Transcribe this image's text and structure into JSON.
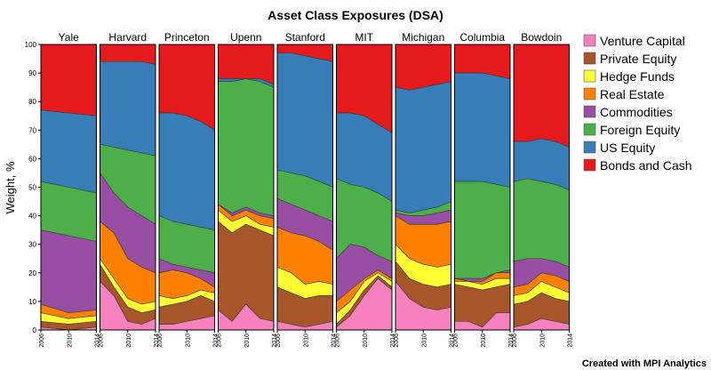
{
  "chart_data": {
    "type": "area",
    "title": "Asset Class Exposures (DSA)",
    "ylabel": "Weight, %",
    "ylim": [
      0,
      100
    ],
    "yticks": [
      0,
      10,
      20,
      30,
      40,
      50,
      60,
      70,
      80,
      90,
      100
    ],
    "stacked": true,
    "legend_position": "right",
    "credit": "Created with MPI Analytics",
    "x_tick_labels": [
      "2006",
      "2010",
      "2014"
    ],
    "series": [
      {
        "name": "Venture Capital",
        "color": "#f781bf"
      },
      {
        "name": "Private Equity",
        "color": "#a65628"
      },
      {
        "name": "Hedge Funds",
        "color": "#ffff33"
      },
      {
        "name": "Real Estate",
        "color": "#ff7f00"
      },
      {
        "name": "Commodities",
        "color": "#984ea3"
      },
      {
        "name": "Foreign Equity",
        "color": "#4daf4a"
      },
      {
        "name": "US Equity",
        "color": "#377eb8"
      },
      {
        "name": "Bonds and Cash",
        "color": "#e41a1c"
      }
    ],
    "panels": [
      {
        "title": "Yale",
        "x": [
          2006,
          2010,
          2014
        ],
        "cumulative": [
          [
            1,
            0,
            1
          ],
          [
            3,
            2,
            3
          ],
          [
            6,
            4,
            5
          ],
          [
            9,
            6,
            7
          ],
          [
            35,
            33,
            31
          ],
          [
            52,
            50,
            48
          ],
          [
            77,
            76,
            75
          ],
          [
            100,
            100,
            100
          ]
        ]
      },
      {
        "title": "Harvard",
        "x": [
          2006,
          2008,
          2010,
          2012,
          2014
        ],
        "cumulative": [
          [
            17,
            12,
            3,
            2,
            4
          ],
          [
            23,
            15,
            8,
            6,
            7
          ],
          [
            25,
            18,
            11,
            9,
            10
          ],
          [
            38,
            34,
            25,
            22,
            20
          ],
          [
            55,
            48,
            43,
            40,
            37
          ],
          [
            65,
            64,
            63,
            62,
            61
          ],
          [
            94,
            94,
            94,
            94,
            93
          ],
          [
            100,
            100,
            100,
            100,
            100
          ]
        ]
      },
      {
        "title": "Princeton",
        "x": [
          2006,
          2008,
          2010,
          2012,
          2014
        ],
        "cumulative": [
          [
            2,
            2,
            3,
            4,
            5
          ],
          [
            8,
            9,
            10,
            12,
            10
          ],
          [
            12,
            11,
            12,
            14,
            13
          ],
          [
            20,
            21,
            20,
            18,
            15
          ],
          [
            25,
            23,
            22,
            21,
            20
          ],
          [
            40,
            38,
            37,
            36,
            35
          ],
          [
            76,
            76,
            75,
            73,
            70
          ],
          [
            100,
            100,
            100,
            100,
            100
          ]
        ]
      },
      {
        "title": "Upenn",
        "x": [
          2006,
          2008,
          2010,
          2012,
          2014
        ],
        "cumulative": [
          [
            7,
            3,
            9,
            4,
            3
          ],
          [
            38,
            34,
            37,
            35,
            33
          ],
          [
            42,
            38,
            40,
            37,
            36
          ],
          [
            44,
            40,
            42,
            40,
            39
          ],
          [
            44,
            41,
            43,
            41,
            40
          ],
          [
            87,
            87,
            88,
            87,
            85
          ],
          [
            88,
            88,
            88,
            88,
            86
          ],
          [
            100,
            100,
            100,
            100,
            100
          ]
        ]
      },
      {
        "title": "Stanford",
        "x": [
          2006,
          2008,
          2010,
          2012,
          2014
        ],
        "cumulative": [
          [
            3,
            2,
            1,
            2,
            3
          ],
          [
            15,
            13,
            11,
            12,
            12
          ],
          [
            22,
            20,
            16,
            17,
            16
          ],
          [
            36,
            34,
            33,
            31,
            28
          ],
          [
            46,
            44,
            42,
            40,
            38
          ],
          [
            56,
            55,
            54,
            52,
            50
          ],
          [
            97,
            97,
            96,
            95,
            94
          ],
          [
            100,
            100,
            100,
            100,
            100
          ]
        ]
      },
      {
        "title": "MIT",
        "x": [
          2006,
          2008,
          2010,
          2012,
          2014
        ],
        "cumulative": [
          [
            1,
            5,
            12,
            18,
            14
          ],
          [
            2,
            7,
            14,
            19,
            15
          ],
          [
            6,
            10,
            17,
            20,
            17
          ],
          [
            10,
            14,
            18,
            21,
            18
          ],
          [
            25,
            30,
            29,
            26,
            24
          ],
          [
            53,
            51,
            50,
            48,
            45
          ],
          [
            76,
            76,
            75,
            72,
            69
          ],
          [
            100,
            100,
            100,
            100,
            100
          ]
        ]
      },
      {
        "title": "Michigan",
        "x": [
          2006,
          2008,
          2010,
          2012,
          2014
        ],
        "cumulative": [
          [
            17,
            11,
            8,
            7,
            8
          ],
          [
            24,
            18,
            16,
            15,
            16
          ],
          [
            30,
            25,
            23,
            22,
            23
          ],
          [
            40,
            37,
            37,
            37,
            38
          ],
          [
            41,
            40,
            40,
            41,
            42
          ],
          [
            42,
            41,
            42,
            43,
            45
          ],
          [
            85,
            84,
            85,
            86,
            87
          ],
          [
            100,
            100,
            100,
            100,
            100
          ]
        ]
      },
      {
        "title": "Columbia",
        "x": [
          2006,
          2008,
          2010,
          2012,
          2014
        ],
        "cumulative": [
          [
            3,
            3,
            1,
            6,
            6
          ],
          [
            16,
            15,
            14,
            15,
            16
          ],
          [
            17,
            17,
            16,
            18,
            18
          ],
          [
            18,
            17,
            17,
            20,
            20
          ],
          [
            18,
            18,
            18,
            20,
            21
          ],
          [
            52,
            52,
            52,
            51,
            50
          ],
          [
            90,
            90,
            90,
            89,
            88
          ],
          [
            100,
            100,
            100,
            100,
            100
          ]
        ]
      },
      {
        "title": "Bowdoin",
        "x": [
          2006,
          2008,
          2010,
          2012,
          2014
        ],
        "cumulative": [
          [
            1,
            2,
            4,
            3,
            2
          ],
          [
            9,
            10,
            13,
            11,
            10
          ],
          [
            12,
            13,
            17,
            15,
            13
          ],
          [
            15,
            16,
            20,
            19,
            17
          ],
          [
            24,
            25,
            25,
            24,
            22
          ],
          [
            52,
            53,
            52,
            51,
            49
          ],
          [
            66,
            66,
            67,
            66,
            64
          ],
          [
            100,
            100,
            100,
            100,
            100
          ]
        ]
      }
    ]
  }
}
